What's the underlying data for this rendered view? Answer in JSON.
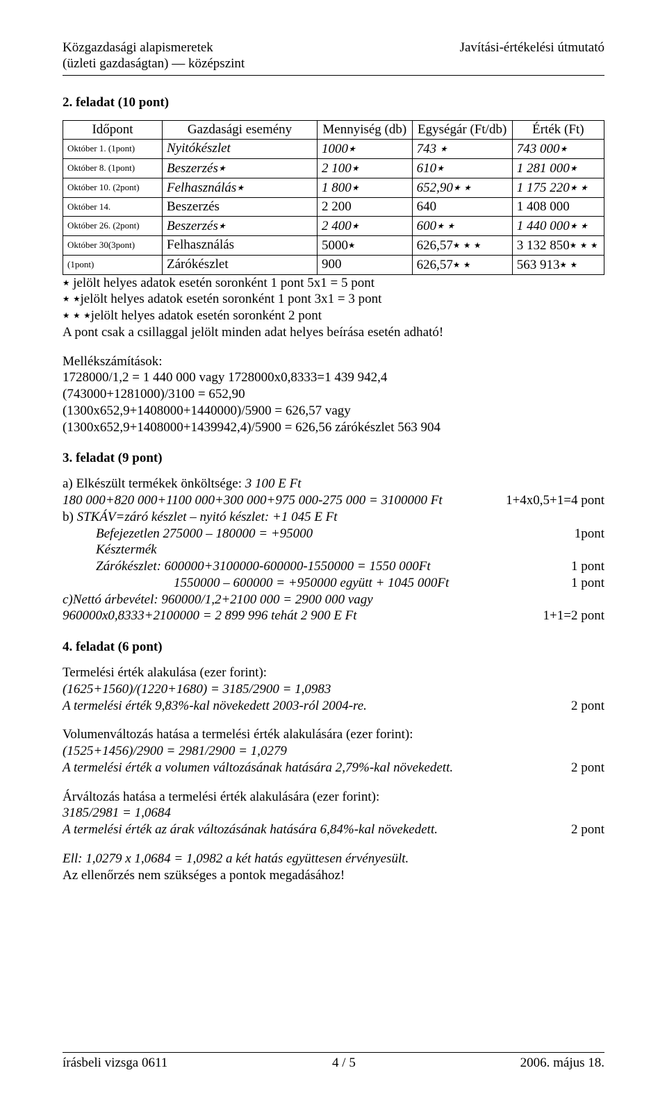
{
  "header": {
    "left_line1": "Közgazdasági alapismeretek",
    "left_line2": "(üzleti gazdaságtan) — középszint",
    "right_line1": "Javítási-értékelési útmutató"
  },
  "task2": {
    "title": "2. feladat  (10 pont)",
    "columns": [
      "Időpont",
      "Gazdasági esemény",
      "Mennyiség (db)",
      "Egységár (Ft/db)",
      "Érték (Ft)"
    ],
    "rows": [
      {
        "time": "Október 1. (1pont)",
        "event": "Nyitókészlet",
        "event_italic": true,
        "qty": "1000٭",
        "price": "743 ٭",
        "val": "743 000٭"
      },
      {
        "time": "Október 8. (1pont)",
        "event": "Beszerzés٭",
        "event_italic": true,
        "qty": "2 100٭",
        "price": "610٭",
        "val": "1 281 000٭"
      },
      {
        "time": "Október 10. (2pont)",
        "event": "Felhasználás٭",
        "event_italic": true,
        "qty": "1 800٭",
        "price": "652,90٭ ٭",
        "val": "1 175 220٭ ٭"
      },
      {
        "time": "Október 14.",
        "event": "Beszerzés",
        "event_italic": false,
        "qty": "2 200",
        "price": "640",
        "val": "1 408 000"
      },
      {
        "time": "Október 26. (2pont)",
        "event": "Beszerzés٭",
        "event_italic": true,
        "qty": "2 400٭",
        "price": "600٭ ٭",
        "val": "1 440 000٭ ٭"
      },
      {
        "time": "Október 30(3pont)",
        "event": "Felhasználás",
        "event_italic": false,
        "qty": "5000٭",
        "price": "626,57٭ ٭ ٭",
        "val": "3 132 850٭ ٭ ٭"
      },
      {
        "time": "(1pont)",
        "event": "Zárókészlet",
        "event_italic": false,
        "qty": "900",
        "price": "626,57٭ ٭",
        "val": "563 913٭ ٭"
      }
    ],
    "note1": "٭ jelölt helyes adatok esetén soronként 1 pont     5x1 = 5 pont",
    "note2": "٭ ٭jelölt helyes adatok esetén soronként 1 pont    3x1 = 3 pont",
    "note3": "٭ ٭ ٭jelölt helyes adatok esetén soronként                  2 pont",
    "note4": "A pont csak a csillaggal jelölt minden adat helyes beírása esetén adható!",
    "mellek_title": "Mellékszámítások:",
    "mellek_lines": [
      "1728000/1,2 = 1 440 000  vagy 1728000x0,8333=1 439 942,4",
      "(743000+1281000)/3100 = 652,90",
      "(1300x652,9+1408000+1440000)/5900 = 626,57 vagy",
      "(1300x652,9+1408000+1439942,4)/5900 = 626,56  zárókészlet 563 904"
    ]
  },
  "task3": {
    "title": "3. feladat (9 pont)",
    "a_label": "a) Elkészült termékek önköltsége: ",
    "a_value": "3 100 E Ft",
    "a_calc_left": "180 000+820 000+1100 000+300 000+975 000-275 000 = 3100000 Ft",
    "a_calc_right": "1+4x0,5+1=4 pont",
    "b_label": "b) ",
    "b_text": "STKÁV=záró készlet – nyitó készlet: +1 045 E Ft",
    "b_line1_left": "Befejezetlen  275000 – 180000 = +95000",
    "b_line1_right": "1pont",
    "b_line2": "Késztermék",
    "b_line3_left": "Zárókészlet: 600000+3100000-600000-1550000 = 1550 000Ft",
    "b_line3_right": "1 pont",
    "b_line4_left": "1550000 – 600000 = +950000          együtt + 1045 000Ft",
    "b_line4_right": "1 pont",
    "c_line1": "c)Nettó árbevétel: 960000/1,2+2100 000 = 2900 000  vagy",
    "c_line2_left": "960000x0,8333+2100000 = 2 899 996     tehát 2 900 E Ft",
    "c_line2_right": "1+1=2 pont"
  },
  "task4": {
    "title": "4. feladat  (6 pont)",
    "p1_l1": "Termelési érték alakulása (ezer forint):",
    "p1_l2": "(1625+1560)/(1220+1680) = 3185/2900 = 1,0983",
    "p1_l3_left": "A termelési érték 9,83%-kal növekedett 2003-ról 2004-re.",
    "p1_l3_right": "2 pont",
    "p2_l1": "Volumenváltozás hatása a termelési érték alakulására (ezer forint):",
    "p2_l2": "(1525+1456)/2900 = 2981/2900 = 1,0279",
    "p2_l3_left": "A termelési érték a volumen változásának hatására 2,79%-kal növekedett.",
    "p2_l3_right": "2 pont",
    "p3_l1": "Árváltozás hatása a termelési érték alakulására (ezer forint):",
    "p3_l2": "3185/2981 = 1,0684",
    "p3_l3_left": "A termelési érték az árak változásának hatására 6,84%-kal növekedett.",
    "p3_l3_right": "2 pont",
    "p4_l1": "Ell: 1,0279 x 1,0684 = 1,0982 a két hatás együttesen érvényesült.",
    "p4_l2": "Az ellenőrzés nem szükséges a pontok megadásához!"
  },
  "footer": {
    "left": "írásbeli vizsga 0611",
    "center": "4 / 5",
    "right": "2006. május 18."
  }
}
